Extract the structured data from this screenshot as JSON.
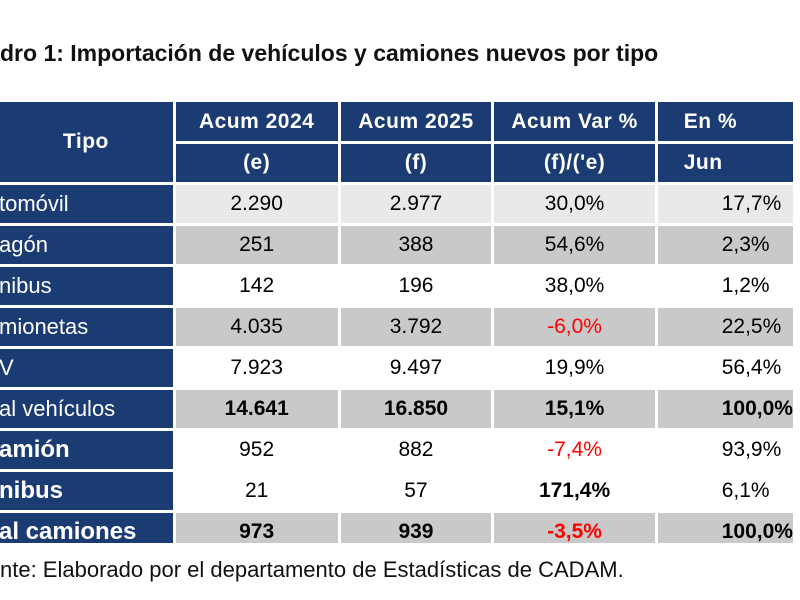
{
  "title": "dro 1: Importación de vehículos y camiones nuevos por tipo",
  "source": "nte: Elaborado por el departamento de Estadísticas de CADAM.",
  "header": {
    "tipo": "Tipo",
    "col1": "Acum 2024",
    "col2": "Acum 2025",
    "col3": "Acum Var %",
    "col4": "En %",
    "sub1": "(e)",
    "sub2": "(f)",
    "sub3": "(f)/('e)",
    "sub4": "Jun"
  },
  "rows": [
    {
      "label": "tomóvil",
      "a2024": "2.290",
      "a2025": "2.977",
      "var": "30,0%",
      "pct": "17,7%"
    },
    {
      "label": "agón",
      "a2024": "251",
      "a2025": "388",
      "var": "54,6%",
      "pct": "2,3%"
    },
    {
      "label": "nibus",
      "a2024": "142",
      "a2025": "196",
      "var": "38,0%",
      "pct": "1,2%"
    },
    {
      "label": "mionetas",
      "a2024": "4.035",
      "a2025": "3.792",
      "var": "-6,0%",
      "pct": "22,5%"
    },
    {
      "label": "V",
      "a2024": "7.923",
      "a2025": "9.497",
      "var": "19,9%",
      "pct": "56,4%"
    },
    {
      "label": "al vehículos",
      "a2024": "14.641",
      "a2025": "16.850",
      "var": "15,1%",
      "pct": "100,0%"
    },
    {
      "label": "amión",
      "a2024": "952",
      "a2025": "882",
      "var": "-7,4%",
      "pct": "93,9%"
    },
    {
      "label": "nibus",
      "a2024": "21",
      "a2025": "57",
      "var": "171,4%",
      "pct": "6,1%"
    },
    {
      "label": "al camiones",
      "a2024": "973",
      "a2025": "939",
      "var": "-3,5%",
      "pct": "100,0%"
    }
  ],
  "colors": {
    "header_bg": "#1b3b73",
    "gray_row": "#c9c9c9",
    "negative": "#ff0000"
  }
}
